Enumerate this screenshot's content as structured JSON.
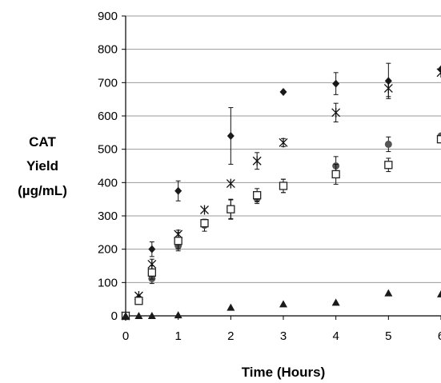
{
  "chart_data": {
    "type": "scatter",
    "xlabel": "Time (Hours)",
    "ylabel_lines": [
      "CAT",
      "Yield",
      "(µg/mL)"
    ],
    "xlim": [
      0,
      6
    ],
    "ylim": [
      0,
      900
    ],
    "x_ticks": [
      0,
      1,
      2,
      3,
      4,
      5,
      6
    ],
    "y_ticks": [
      0,
      100,
      200,
      300,
      400,
      500,
      600,
      700,
      800,
      900
    ],
    "grid": "horizontal",
    "legend": "none",
    "series": [
      {
        "marker": "diamond",
        "points": [
          {
            "x": 0,
            "y": 0,
            "err": 0
          },
          {
            "x": 0.25,
            "y": 55,
            "err": 0
          },
          {
            "x": 0.5,
            "y": 200,
            "err": 22
          },
          {
            "x": 1,
            "y": 375,
            "err": 30
          },
          {
            "x": 2,
            "y": 540,
            "err": 85
          },
          {
            "x": 3,
            "y": 672,
            "err": 0
          },
          {
            "x": 4,
            "y": 697,
            "err": 33
          },
          {
            "x": 5,
            "y": 705,
            "err": 53
          },
          {
            "x": 6,
            "y": 740,
            "err": 0
          }
        ]
      },
      {
        "marker": "star",
        "points": [
          {
            "x": 0,
            "y": 0,
            "err": 0
          },
          {
            "x": 0.25,
            "y": 60,
            "err": 0
          },
          {
            "x": 0.5,
            "y": 155,
            "err": 15
          },
          {
            "x": 1,
            "y": 245,
            "err": 12
          },
          {
            "x": 1.5,
            "y": 318,
            "err": 0
          },
          {
            "x": 2,
            "y": 397,
            "err": 0
          },
          {
            "x": 2.5,
            "y": 465,
            "err": 25
          },
          {
            "x": 3,
            "y": 520,
            "err": 12
          },
          {
            "x": 4,
            "y": 610,
            "err": 28
          },
          {
            "x": 5,
            "y": 683,
            "err": 25
          },
          {
            "x": 6,
            "y": 730,
            "err": 0
          }
        ]
      },
      {
        "marker": "circle",
        "points": [
          {
            "x": 0,
            "y": 0,
            "err": 0
          },
          {
            "x": 0.5,
            "y": 112,
            "err": 15
          },
          {
            "x": 1,
            "y": 210,
            "err": 15
          },
          {
            "x": 1.5,
            "y": 272,
            "err": 18
          },
          {
            "x": 2,
            "y": 320,
            "err": 28
          },
          {
            "x": 2.5,
            "y": 352,
            "err": 15
          },
          {
            "x": 3,
            "y": 390,
            "err": 20
          },
          {
            "x": 4,
            "y": 450,
            "err": 28
          },
          {
            "x": 5,
            "y": 515,
            "err": 22
          },
          {
            "x": 6,
            "y": 540,
            "err": 0
          }
        ]
      },
      {
        "marker": "square",
        "points": [
          {
            "x": 0,
            "y": 0,
            "err": 0
          },
          {
            "x": 0.25,
            "y": 45,
            "err": 0
          },
          {
            "x": 0.5,
            "y": 130,
            "err": 20
          },
          {
            "x": 1,
            "y": 225,
            "err": 25
          },
          {
            "x": 1.5,
            "y": 278,
            "err": 0
          },
          {
            "x": 2,
            "y": 320,
            "err": 30
          },
          {
            "x": 2.5,
            "y": 362,
            "err": 20
          },
          {
            "x": 3,
            "y": 390,
            "err": 20
          },
          {
            "x": 4,
            "y": 425,
            "err": 30
          },
          {
            "x": 5,
            "y": 453,
            "err": 20
          },
          {
            "x": 6,
            "y": 530,
            "err": 0
          }
        ]
      },
      {
        "marker": "triangle",
        "points": [
          {
            "x": 0,
            "y": 0,
            "err": 0
          },
          {
            "x": 0.25,
            "y": 0,
            "err": 0
          },
          {
            "x": 0.5,
            "y": 0,
            "err": 0
          },
          {
            "x": 1,
            "y": 2,
            "err": 0
          },
          {
            "x": 2,
            "y": 25,
            "err": 0
          },
          {
            "x": 3,
            "y": 35,
            "err": 0
          },
          {
            "x": 4,
            "y": 40,
            "err": 0
          },
          {
            "x": 5,
            "y": 68,
            "err": 0
          },
          {
            "x": 6,
            "y": 65,
            "err": 0
          }
        ]
      }
    ]
  }
}
